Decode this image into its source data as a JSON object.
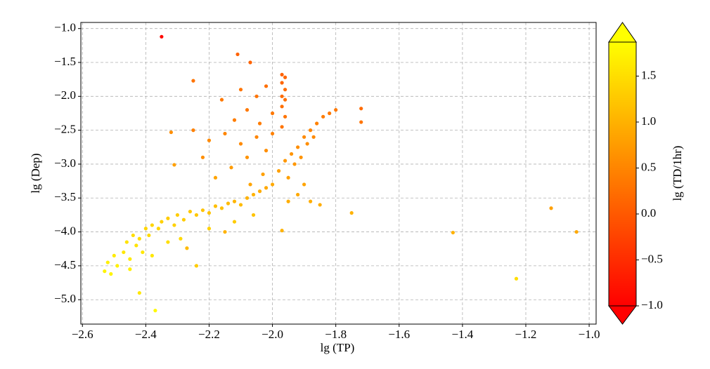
{
  "chart_data": {
    "type": "scatter",
    "x_label": "lg (TP)",
    "y_label": "lg (Dep)",
    "colorbar_label": "lg (TD/1hr)",
    "xlim": [
      -2.605,
      -0.978
    ],
    "ylim": [
      -5.36,
      -0.91
    ],
    "clim": [
      -1.0,
      1.87
    ],
    "colormap": [
      "#ff0000",
      "#ffff00"
    ],
    "grid": true,
    "xticks": [
      {
        "value": -2.6,
        "label": "−2.6"
      },
      {
        "value": -2.4,
        "label": "−2.4"
      },
      {
        "value": -2.2,
        "label": "−2.2"
      },
      {
        "value": -2.0,
        "label": "−2.0"
      },
      {
        "value": -1.8,
        "label": "−1.8"
      },
      {
        "value": -1.6,
        "label": "−1.6"
      },
      {
        "value": -1.4,
        "label": "−1.4"
      },
      {
        "value": -1.2,
        "label": "−1.2"
      },
      {
        "value": -1.0,
        "label": "−1.0"
      }
    ],
    "yticks": [
      {
        "value": -1.0,
        "label": "−1.0"
      },
      {
        "value": -1.5,
        "label": "−1.5"
      },
      {
        "value": -2.0,
        "label": "−2.0"
      },
      {
        "value": -2.5,
        "label": "−2.5"
      },
      {
        "value": -3.0,
        "label": "−3.0"
      },
      {
        "value": -3.5,
        "label": "−3.5"
      },
      {
        "value": -4.0,
        "label": "−4.0"
      },
      {
        "value": -4.5,
        "label": "−4.5"
      },
      {
        "value": -5.0,
        "label": "−5.0"
      }
    ],
    "cticks": [
      {
        "value": -1.0,
        "label": "−1.0"
      },
      {
        "value": -0.5,
        "label": "−0.5"
      },
      {
        "value": 0.0,
        "label": "0.0"
      },
      0.5,
      {
        "value": 1.0,
        "label": "1.0"
      },
      1.5
    ],
    "series": [
      {
        "x": [
          -2.53,
          -2.52,
          -2.51,
          -2.5,
          -2.49,
          -2.47,
          -2.46,
          -2.45,
          -2.44,
          -2.43,
          -2.42,
          -2.41,
          -2.4,
          -2.39,
          -2.38,
          -2.36,
          -2.35,
          -2.33,
          -2.31,
          -2.3,
          -2.28,
          -2.26,
          -2.24,
          -2.22,
          -2.2,
          -2.18,
          -2.16,
          -2.14,
          -2.12,
          -2.1,
          -2.08,
          -2.06,
          -2.04,
          -2.02,
          -2.0,
          -2.45,
          -2.38,
          -2.33,
          -2.29,
          -2.2,
          -2.12,
          -2.06,
          -1.98,
          -1.96,
          -1.94,
          -1.92,
          -1.9,
          -1.88,
          -1.86,
          -1.84,
          -1.82,
          -1.8,
          -1.93,
          -1.91,
          -1.89,
          -1.87,
          -1.95,
          -1.9,
          -1.92,
          -1.88,
          -1.85,
          -1.95,
          -1.97,
          -1.96,
          -1.97,
          -1.96,
          -1.97,
          -1.96,
          -1.97,
          -1.96,
          -1.97,
          -2.1,
          -2.05,
          -2.02,
          -2.16,
          -2.08,
          -2.12,
          -2.04,
          -2.0,
          -2.15,
          -2.1,
          -2.05,
          -2.2,
          -2.08,
          -2.02,
          -2.13,
          -2.03,
          -2.18,
          -2.25,
          -2.22,
          -2.0,
          -2.07,
          -2.35,
          -2.11,
          -2.07,
          -2.25,
          -2.32,
          -2.31,
          -2.42,
          -2.37,
          -1.75,
          -1.43,
          -1.23,
          -1.12,
          -1.04,
          -1.72,
          -1.72,
          -2.24,
          -2.27,
          -1.97,
          -2.15
        ],
        "values": [
          -4.58,
          -4.45,
          -4.62,
          -4.35,
          -4.5,
          -4.3,
          -4.15,
          -4.4,
          -4.05,
          -4.2,
          -4.1,
          -4.3,
          -3.95,
          -4.05,
          -3.9,
          -3.95,
          -3.85,
          -3.8,
          -3.9,
          -3.75,
          -3.82,
          -3.7,
          -3.75,
          -3.68,
          -3.72,
          -3.62,
          -3.65,
          -3.58,
          -3.55,
          -3.6,
          -3.5,
          -3.45,
          -3.4,
          -3.35,
          -3.3,
          -4.55,
          -4.35,
          -4.15,
          -4.1,
          -3.95,
          -3.85,
          -3.75,
          -3.1,
          -2.95,
          -2.85,
          -2.75,
          -2.6,
          -2.5,
          -2.4,
          -2.3,
          -2.25,
          -2.2,
          -3.0,
          -2.9,
          -2.7,
          -2.6,
          -3.2,
          -3.3,
          -3.45,
          -3.55,
          -3.6,
          -3.55,
          -1.68,
          -1.72,
          -1.8,
          -1.9,
          -2.0,
          -2.05,
          -2.15,
          -2.3,
          -2.45,
          -1.9,
          -2.0,
          -1.85,
          -2.05,
          -2.2,
          -2.35,
          -2.4,
          -2.25,
          -2.55,
          -2.7,
          -2.6,
          -2.65,
          -2.9,
          -2.8,
          -3.05,
          -3.15,
          -3.2,
          -2.5,
          -2.9,
          -2.55,
          -3.3,
          -1.12,
          -1.38,
          -1.5,
          -1.77,
          -2.53,
          -3.01,
          -4.9,
          -5.16,
          -3.72,
          -4.01,
          -4.69,
          -3.65,
          -4.0,
          -2.18,
          -2.38,
          -4.5,
          -4.24,
          -3.98,
          -4.0
        ],
        "c": [
          1.75,
          1.7,
          1.75,
          1.65,
          1.7,
          1.6,
          1.55,
          1.65,
          1.5,
          1.55,
          1.5,
          1.6,
          1.4,
          1.45,
          1.4,
          1.4,
          1.35,
          1.3,
          1.35,
          1.3,
          1.3,
          1.25,
          1.25,
          1.2,
          1.2,
          1.15,
          1.15,
          1.1,
          1.05,
          1.1,
          1.0,
          1.0,
          0.95,
          0.9,
          0.9,
          1.7,
          1.6,
          1.5,
          1.45,
          1.35,
          1.3,
          1.2,
          0.8,
          0.7,
          0.65,
          0.6,
          0.55,
          0.5,
          0.45,
          0.4,
          0.35,
          0.35,
          0.7,
          0.65,
          0.6,
          0.55,
          0.8,
          0.85,
          0.9,
          0.95,
          0.95,
          0.95,
          0.1,
          0.15,
          0.15,
          0.2,
          0.2,
          0.25,
          0.25,
          0.3,
          0.3,
          0.3,
          0.3,
          0.25,
          0.35,
          0.35,
          0.4,
          0.4,
          0.35,
          0.5,
          0.55,
          0.5,
          0.55,
          0.65,
          0.6,
          0.75,
          0.8,
          0.85,
          0.45,
          0.6,
          0.45,
          0.85,
          -0.9,
          0.1,
          0.1,
          0.3,
          0.6,
          0.8,
          1.6,
          1.8,
          1.0,
          1.0,
          1.5,
          0.8,
          0.9,
          0.2,
          0.3,
          1.3,
          1.1,
          1.0,
          1.0
        ]
      }
    ]
  }
}
